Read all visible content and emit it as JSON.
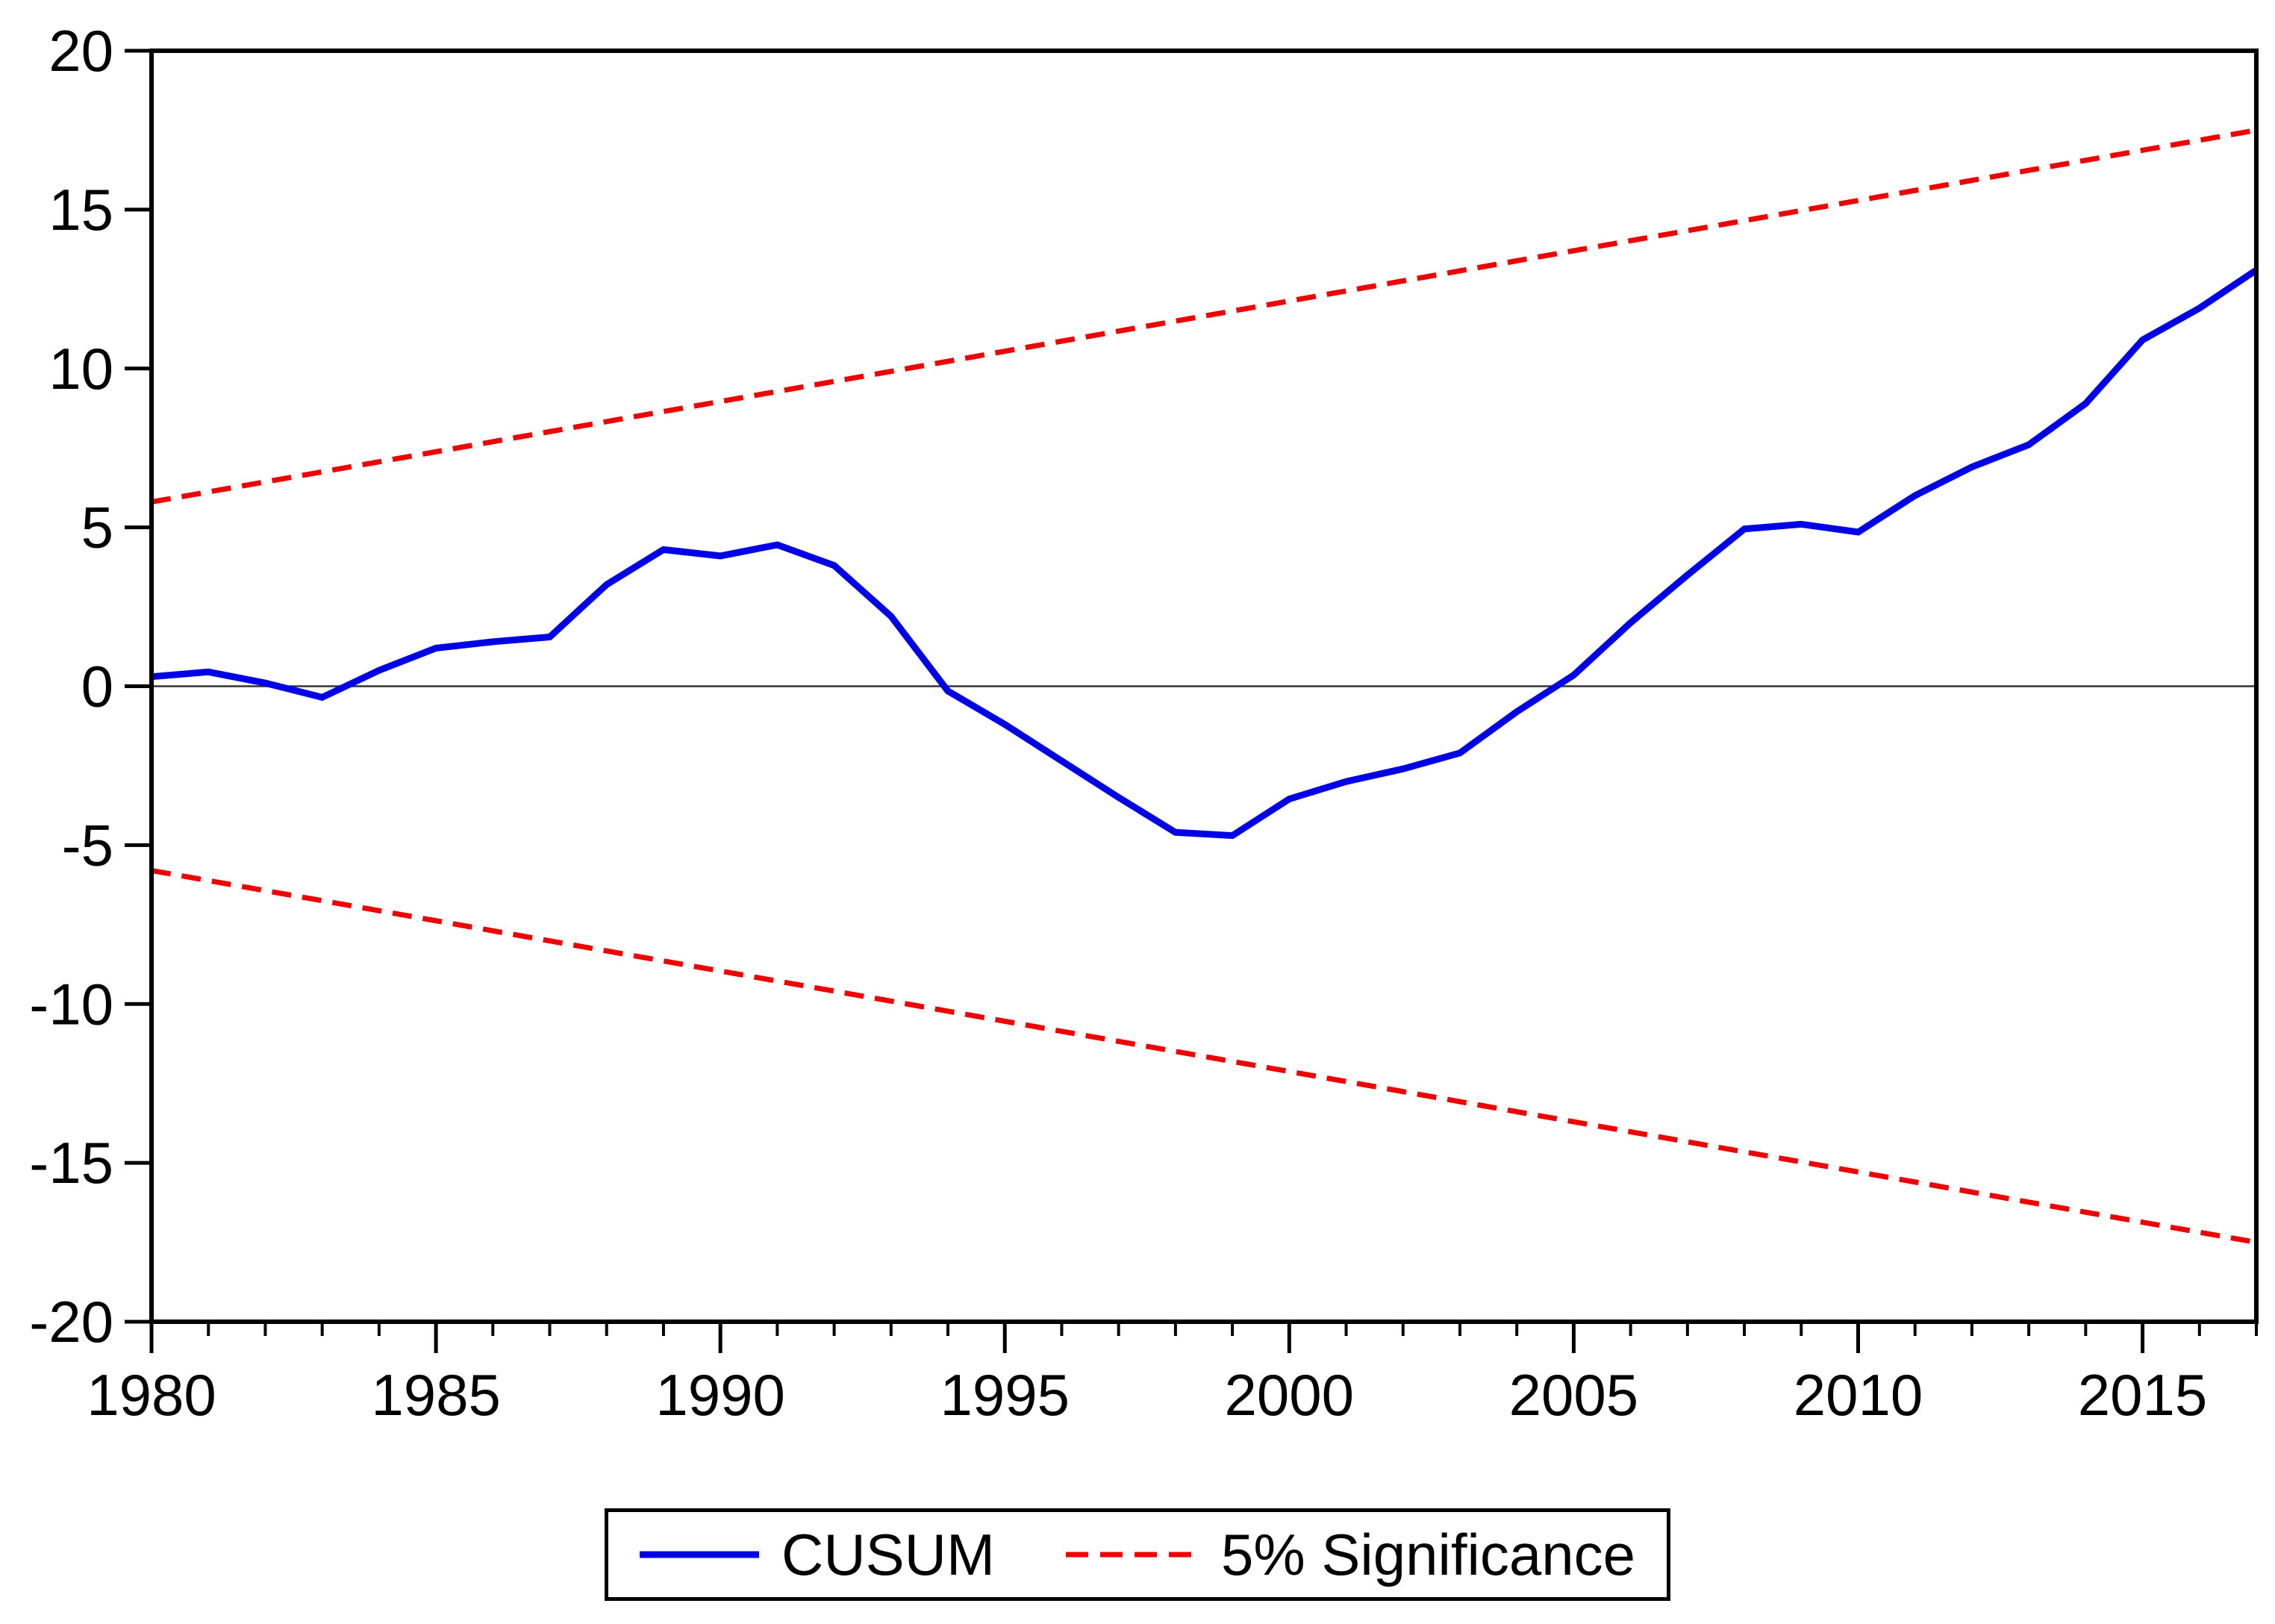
{
  "figure": {
    "background": "#ffffff",
    "frame_color": "#000000"
  },
  "chart_data": {
    "type": "line",
    "title": "",
    "xlabel": "",
    "ylabel": "",
    "x_range": [
      1980,
      2017
    ],
    "ylim": [
      -20,
      20
    ],
    "y_ticks": [
      20,
      15,
      10,
      5,
      0,
      -5,
      -10,
      -15,
      -20
    ],
    "x_ticks_labeled": [
      1980,
      1985,
      1990,
      1995,
      2000,
      2005,
      2010,
      2015
    ],
    "x_minor_tick_step_years": 1,
    "grid": "off",
    "zero_line": true,
    "legend_position": "bottom-center",
    "legend_entries": [
      {
        "label": "CUSUM",
        "color": "#0000e6",
        "style": "solid"
      },
      {
        "label": "5% Significance",
        "color": "#ee0000",
        "style": "dashed"
      }
    ],
    "series": [
      {
        "name": "CUSUM",
        "color": "#0000e6",
        "style": "solid",
        "x": [
          1980,
          1981,
          1982,
          1983,
          1984,
          1985,
          1986,
          1987,
          1988,
          1989,
          1990,
          1991,
          1992,
          1993,
          1994,
          1995,
          1996,
          1997,
          1998,
          1999,
          2000,
          2001,
          2002,
          2003,
          2004,
          2005,
          2006,
          2007,
          2008,
          2009,
          2010,
          2011,
          2012,
          2013,
          2014,
          2015,
          2016,
          2017
        ],
        "values": [
          0.3,
          0.45,
          0.1,
          -0.35,
          0.5,
          1.2,
          1.4,
          1.55,
          3.2,
          4.3,
          4.1,
          4.45,
          3.8,
          2.2,
          -0.15,
          -1.2,
          -2.35,
          -3.5,
          -4.6,
          -4.7,
          -3.55,
          -3.0,
          -2.6,
          -2.1,
          -0.8,
          0.35,
          2.0,
          3.5,
          4.95,
          5.1,
          4.85,
          6.0,
          6.9,
          7.6,
          8.9,
          10.9,
          11.9,
          13.1
        ]
      },
      {
        "name": "5% Significance (upper bound)",
        "color": "#ee0000",
        "style": "dashed",
        "x": [
          1980,
          2017
        ],
        "values": [
          5.8,
          17.5
        ]
      },
      {
        "name": "5% Significance (lower bound)",
        "color": "#ee0000",
        "style": "dashed",
        "x": [
          1980,
          2017
        ],
        "values": [
          -5.8,
          -17.5
        ]
      }
    ]
  }
}
